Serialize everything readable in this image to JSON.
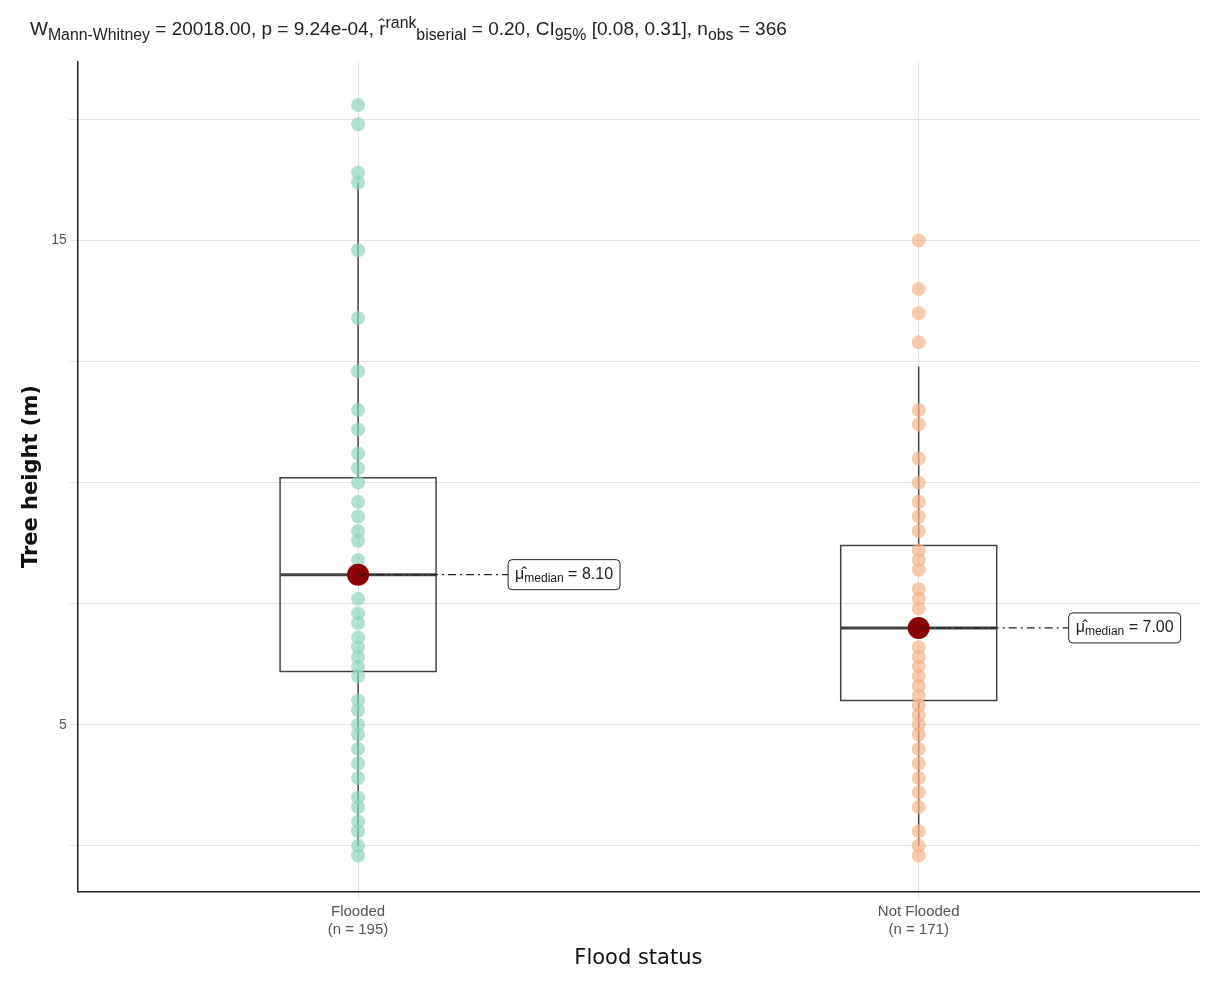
{
  "chart_data": {
    "type": "box",
    "title": "W$_{Mann-Whitney}$ = 20018.00, p = 9.24e-04, r̂$^{rank}$$_{biserial}$ = 0.20, CI$_{95%}$ [0.08, 0.31], n$_{obs}$ = 366",
    "xlabel": "Flood status",
    "ylabel": "Tree height (m)",
    "categories": [
      "Flooded\n(n = 195)",
      "Not Flooded\n(n = 171)"
    ],
    "boxes": [
      {
        "low": 2.5,
        "q1": 6.1,
        "median": 8.1,
        "q3": 10.1,
        "high": 16.2
      },
      {
        "low": 2.5,
        "q1": 5.5,
        "median": 7.0,
        "q3": 8.7,
        "high": 12.4
      }
    ],
    "series": [
      {
        "type": "scatter",
        "color": "#8fd3bd",
        "x": [
          "Flooded\n(n = 195)",
          "Flooded\n(n = 195)",
          "Flooded\n(n = 195)",
          "Flooded\n(n = 195)",
          "Flooded\n(n = 195)",
          "Flooded\n(n = 195)",
          "Flooded\n(n = 195)",
          "Flooded\n(n = 195)",
          "Flooded\n(n = 195)",
          "Flooded\n(n = 195)",
          "Flooded\n(n = 195)",
          "Flooded\n(n = 195)",
          "Flooded\n(n = 195)",
          "Flooded\n(n = 195)",
          "Flooded\n(n = 195)",
          "Flooded\n(n = 195)",
          "Flooded\n(n = 195)",
          "Flooded\n(n = 195)",
          "Flooded\n(n = 195)",
          "Flooded\n(n = 195)",
          "Flooded\n(n = 195)",
          "Flooded\n(n = 195)",
          "Flooded\n(n = 195)",
          "Flooded\n(n = 195)",
          "Flooded\n(n = 195)",
          "Flooded\n(n = 195)",
          "Flooded\n(n = 195)",
          "Flooded\n(n = 195)",
          "Flooded\n(n = 195)",
          "Flooded\n(n = 195)",
          "Flooded\n(n = 195)",
          "Flooded\n(n = 195)",
          "Flooded\n(n = 195)",
          "Flooded\n(n = 195)",
          "Flooded\n(n = 195)",
          "Flooded\n(n = 195)",
          "Flooded\n(n = 195)",
          "Flooded\n(n = 195)"
        ],
        "values": [
          17.8,
          17.4,
          16.4,
          16.2,
          14.8,
          13.4,
          12.3,
          11.5,
          11.1,
          10.6,
          10.3,
          10.0,
          9.6,
          9.3,
          9.0,
          8.8,
          8.4,
          7.6,
          7.3,
          7.1,
          6.8,
          6.6,
          6.4,
          6.2,
          6.0,
          5.5,
          5.3,
          5.0,
          4.8,
          4.5,
          4.2,
          3.9,
          3.5,
          3.3,
          3.0,
          2.8,
          2.5,
          2.3
        ]
      },
      {
        "type": "scatter",
        "color": "#f2b48a",
        "x": [
          "Not Flooded\n(n = 171)",
          "Not Flooded\n(n = 171)",
          "Not Flooded\n(n = 171)",
          "Not Flooded\n(n = 171)",
          "Not Flooded\n(n = 171)",
          "Not Flooded\n(n = 171)",
          "Not Flooded\n(n = 171)",
          "Not Flooded\n(n = 171)",
          "Not Flooded\n(n = 171)",
          "Not Flooded\n(n = 171)",
          "Not Flooded\n(n = 171)",
          "Not Flooded\n(n = 171)",
          "Not Flooded\n(n = 171)",
          "Not Flooded\n(n = 171)",
          "Not Flooded\n(n = 171)",
          "Not Flooded\n(n = 171)",
          "Not Flooded\n(n = 171)",
          "Not Flooded\n(n = 171)",
          "Not Flooded\n(n = 171)",
          "Not Flooded\n(n = 171)",
          "Not Flooded\n(n = 171)",
          "Not Flooded\n(n = 171)",
          "Not Flooded\n(n = 171)",
          "Not Flooded\n(n = 171)",
          "Not Flooded\n(n = 171)",
          "Not Flooded\n(n = 171)",
          "Not Flooded\n(n = 171)",
          "Not Flooded\n(n = 171)",
          "Not Flooded\n(n = 171)",
          "Not Flooded\n(n = 171)",
          "Not Flooded\n(n = 171)",
          "Not Flooded\n(n = 171)",
          "Not Flooded\n(n = 171)",
          "Not Flooded\n(n = 171)",
          "Not Flooded\n(n = 171)"
        ],
        "values": [
          15.0,
          14.0,
          13.5,
          12.9,
          11.5,
          11.2,
          10.5,
          10.0,
          9.6,
          9.3,
          9.0,
          8.6,
          8.4,
          8.2,
          7.8,
          7.6,
          7.4,
          6.6,
          6.4,
          6.2,
          6.0,
          5.8,
          5.6,
          5.4,
          5.2,
          5.0,
          4.8,
          4.5,
          4.2,
          3.9,
          3.6,
          3.3,
          2.8,
          2.5,
          2.3
        ]
      },
      {
        "type": "scatter",
        "color": "#8b0000",
        "x": [
          "Flooded\n(n = 195)",
          "Not Flooded\n(n = 171)"
        ],
        "values": [
          8.1,
          7.0
        ]
      }
    ],
    "annotations": [
      {
        "text": "μ̂$_{median}$ = 8.10",
        "x": "Flooded\n(n = 195)",
        "y": 8.1
      },
      {
        "text": "μ̂$_{median}$ = 7.00",
        "x": "Not Flooded\n(n = 171)",
        "y": 7.0
      }
    ],
    "ylim": [
      1.55,
      18.7
    ],
    "yticks": [
      {
        "value": 2.5,
        "label": null
      },
      5,
      {
        "value": 7.5,
        "label": null
      },
      {
        "value": 10,
        "label": null
      },
      {
        "value": 12.5,
        "label": null
      },
      15,
      {
        "value": 17.5,
        "label": null
      }
    ],
    "grid": true
  }
}
